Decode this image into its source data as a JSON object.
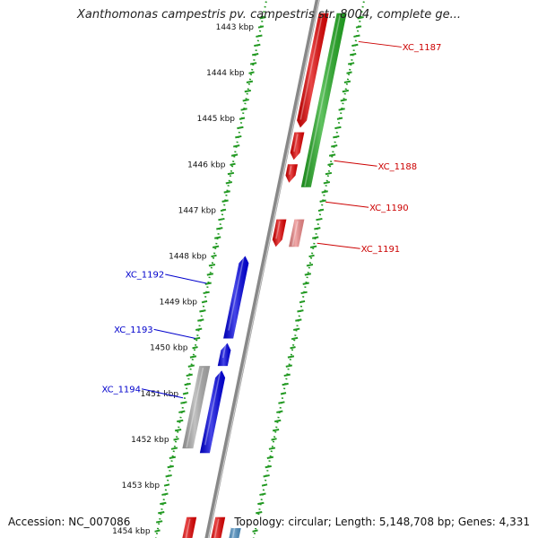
{
  "title": "Xanthomonas campestris pv. campestris str. 8004, complete ge...",
  "footer": {
    "accession": "Accession: NC_007086",
    "topology": "Topology: circular; Length: 5,148,708 bp; Genes: 4,331"
  },
  "ruler": {
    "unit": "kbp",
    "ticks": [
      {
        "kbp": 1443,
        "label": "1443 kbp"
      },
      {
        "kbp": 1444,
        "label": "1444 kbp"
      },
      {
        "kbp": 1445,
        "label": "1445 kbp"
      },
      {
        "kbp": 1446,
        "label": "1446 kbp"
      },
      {
        "kbp": 1447,
        "label": "1447 kbp"
      },
      {
        "kbp": 1448,
        "label": "1448 kbp"
      },
      {
        "kbp": 1449,
        "label": "1449 kbp"
      },
      {
        "kbp": 1450,
        "label": "1450 kbp"
      },
      {
        "kbp": 1451,
        "label": "1451 kbp"
      },
      {
        "kbp": 1452,
        "label": "1452 kbp"
      },
      {
        "kbp": 1453,
        "label": "1453 kbp"
      },
      {
        "kbp": 1454,
        "label": "1454 kbp"
      }
    ]
  },
  "colors": {
    "forward_gene": "#e00000",
    "reverse_gene": "#0000e0",
    "forward_label": "#cc0000",
    "reverse_label": "#0000cc",
    "green_feature": "#22aa22",
    "pink_feature": "#ee8888",
    "gray_feature": "#aaaaaa",
    "steel_feature": "#4488bb",
    "backbone": "#888888",
    "ruler": "#229922"
  },
  "gene_labels": [
    {
      "text": "XC_1187",
      "strand": "forward",
      "kbp": 1443.4
    },
    {
      "text": "XC_1188",
      "strand": "forward",
      "kbp": 1446.0
    },
    {
      "text": "XC_1190",
      "strand": "forward",
      "kbp": 1446.9
    },
    {
      "text": "XC_1191",
      "strand": "forward",
      "kbp": 1447.8
    },
    {
      "text": "XC_1192",
      "strand": "reverse",
      "kbp": 1448.5
    },
    {
      "text": "XC_1193",
      "strand": "reverse",
      "kbp": 1449.7
    },
    {
      "text": "XC_1194",
      "strand": "reverse",
      "kbp": 1451.0
    }
  ],
  "features": [
    {
      "track": "forward",
      "kind": "gene",
      "start": 1442.7,
      "end": 1445.2,
      "color": "#e00000"
    },
    {
      "track": "forward",
      "kind": "gene",
      "start": 1445.3,
      "end": 1445.9,
      "color": "#e00000"
    },
    {
      "track": "forward",
      "kind": "gene",
      "start": 1446.0,
      "end": 1446.4,
      "color": "#e00000"
    },
    {
      "track": "forward",
      "kind": "gene",
      "start": 1447.2,
      "end": 1447.8,
      "color": "#e00000"
    },
    {
      "track": "forward",
      "kind": "gene",
      "start": 1453.7,
      "end": 1454.6,
      "color": "#e00000"
    },
    {
      "track": "forward-outer",
      "kind": "feature",
      "start": 1442.7,
      "end": 1446.5,
      "color": "#22aa22"
    },
    {
      "track": "forward-outer",
      "kind": "feature",
      "start": 1447.2,
      "end": 1447.8,
      "color": "#ee8888"
    },
    {
      "track": "forward-outer",
      "kind": "feature",
      "start": 1453.7,
      "end": 1454.5,
      "color": "#4488bb"
    },
    {
      "track": "reverse",
      "kind": "gene",
      "start": 1448.0,
      "end": 1449.8,
      "color": "#0000e0"
    },
    {
      "track": "reverse",
      "kind": "gene",
      "start": 1449.9,
      "end": 1450.4,
      "color": "#0000e0"
    },
    {
      "track": "reverse",
      "kind": "gene",
      "start": 1450.5,
      "end": 1452.3,
      "color": "#0000e0"
    },
    {
      "track": "reverse",
      "kind": "gene",
      "start": 1453.7,
      "end": 1454.6,
      "color": "#e00000"
    },
    {
      "track": "reverse-outer",
      "kind": "feature",
      "start": 1450.4,
      "end": 1452.2,
      "color": "#aaaaaa"
    }
  ]
}
